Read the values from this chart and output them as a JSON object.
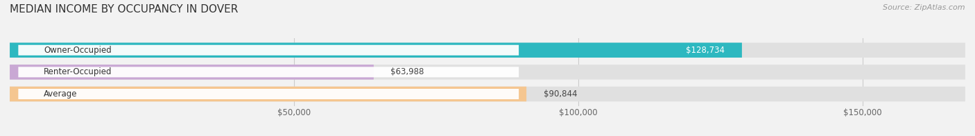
{
  "title": "MEDIAN INCOME BY OCCUPANCY IN DOVER",
  "source": "Source: ZipAtlas.com",
  "categories": [
    "Owner-Occupied",
    "Renter-Occupied",
    "Average"
  ],
  "values": [
    128734,
    63988,
    90844
  ],
  "labels": [
    "$128,734",
    "$63,988",
    "$90,844"
  ],
  "bar_colors": [
    "#2db8c0",
    "#c9a8d4",
    "#f5c690"
  ],
  "background_color": "#f2f2f2",
  "bar_bg_color": "#e0e0e0",
  "xlim": [
    0,
    168000
  ],
  "xticks": [
    50000,
    100000,
    150000
  ],
  "xtick_labels": [
    "$50,000",
    "$100,000",
    "$150,000"
  ],
  "title_fontsize": 11,
  "label_fontsize": 8.5,
  "tick_fontsize": 8.5,
  "source_fontsize": 8
}
